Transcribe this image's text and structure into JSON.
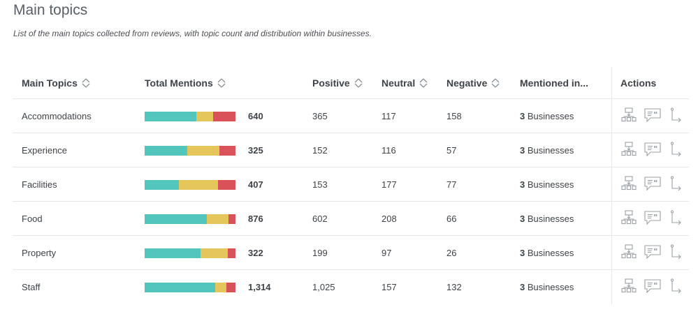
{
  "title": "Main topics",
  "subtitle": "List of the main topics collected from reviews, with topic count and distribution within businesses.",
  "headers": {
    "topic": "Main Topics",
    "total": "Total Mentions",
    "positive": "Positive",
    "neutral": "Neutral",
    "negative": "Negative",
    "mentioned": "Mentioned in...",
    "actions": "Actions"
  },
  "colors": {
    "positive": "#52c6bd",
    "neutral": "#e5c65a",
    "negative": "#d9525a"
  },
  "business_suffix": "Businesses",
  "rows": [
    {
      "topic": "Accommodations",
      "total": "640",
      "positive": "365",
      "neutral": "117",
      "negative": "158",
      "businesses": "3"
    },
    {
      "topic": "Experience",
      "total": "325",
      "positive": "152",
      "neutral": "116",
      "negative": "57",
      "businesses": "3"
    },
    {
      "topic": "Facilities",
      "total": "407",
      "positive": "153",
      "neutral": "177",
      "negative": "77",
      "businesses": "3"
    },
    {
      "topic": "Food",
      "total": "876",
      "positive": "602",
      "neutral": "208",
      "negative": "66",
      "businesses": "3"
    },
    {
      "topic": "Property",
      "total": "322",
      "positive": "199",
      "neutral": "97",
      "negative": "26",
      "businesses": "3"
    },
    {
      "topic": "Staff",
      "total": "1,314",
      "positive": "1,025",
      "neutral": "157",
      "negative": "132",
      "businesses": "3"
    }
  ],
  "action_icons": [
    "hierarchy-icon",
    "quote-bubble-icon",
    "drilldown-arrow-icon"
  ]
}
